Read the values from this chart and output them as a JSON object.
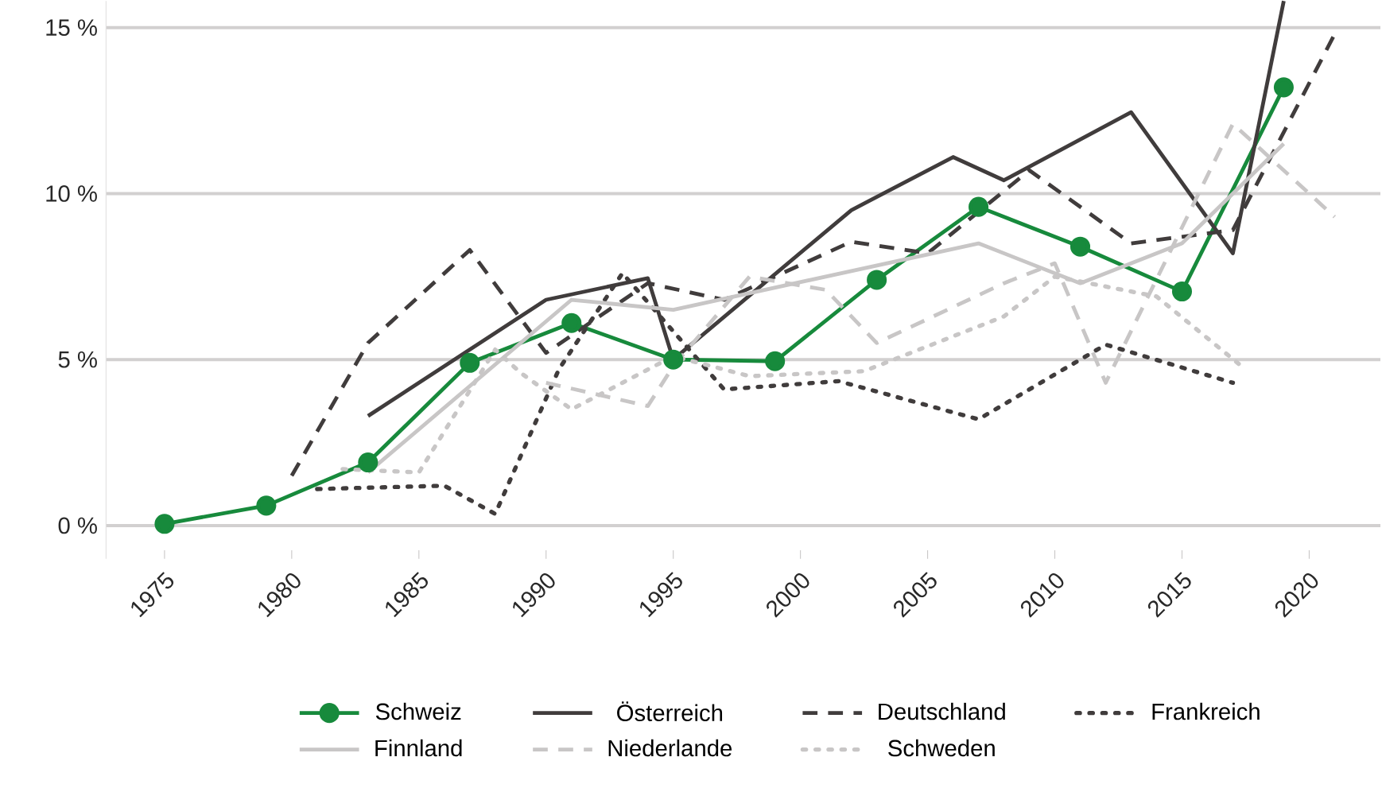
{
  "chart_data": {
    "type": "line",
    "xlim": [
      1972.7,
      2022.8
    ],
    "ylim": [
      -1,
      15.8
    ],
    "xticks": [
      1975,
      1980,
      1985,
      1990,
      1995,
      2000,
      2005,
      2010,
      2015,
      2020
    ],
    "yticks": [
      {
        "value": 0,
        "label": "0 %"
      },
      {
        "value": 5,
        "label": "5 %"
      },
      {
        "value": 10,
        "label": "10 %"
      },
      {
        "value": 15,
        "label": "15 %"
      }
    ],
    "grid": "y",
    "legend": "bottom",
    "series": [
      {
        "name": "Schweiz",
        "color": "#178a3c",
        "line_style": "solid",
        "marker": "circle",
        "x": [
          1975,
          1979,
          1983,
          1987,
          1991,
          1995,
          1999,
          2003,
          2007,
          2011,
          2015,
          2019
        ],
        "values": [
          0.05,
          0.6,
          1.9,
          4.9,
          6.1,
          5.0,
          4.95,
          7.4,
          9.6,
          8.4,
          7.05,
          13.2
        ]
      },
      {
        "name": "Österreich",
        "color": "#403c3c",
        "line_style": "solid",
        "marker": "none",
        "x": [
          1983,
          1990,
          1994,
          1995,
          2002,
          2006,
          2008,
          2013,
          2017,
          2019
        ],
        "values": [
          3.3,
          6.8,
          7.45,
          5.0,
          9.5,
          11.1,
          10.4,
          12.45,
          8.2,
          15.8
        ]
      },
      {
        "name": "Deutschland",
        "color": "#403c3c",
        "line_style": "dashed",
        "marker": "none",
        "x": [
          1980,
          1983,
          1987,
          1990,
          1994,
          1997,
          2002,
          2005,
          2009,
          2013,
          2017,
          2021
        ],
        "values": [
          1.5,
          5.5,
          8.3,
          5.2,
          7.3,
          6.8,
          8.55,
          8.2,
          10.7,
          8.5,
          8.9,
          14.8
        ]
      },
      {
        "name": "Frankreich",
        "color": "#403c3c",
        "line_style": "dotted",
        "marker": "none",
        "x": [
          1981,
          1986,
          1988,
          1990.5,
          1993,
          1997,
          2001.5,
          2007,
          2012,
          2017
        ],
        "values": [
          1.1,
          1.2,
          0.35,
          4.7,
          7.6,
          4.1,
          4.35,
          3.2,
          5.45,
          4.3
        ]
      },
      {
        "name": "Finnland",
        "color": "#c8c6c6",
        "line_style": "solid",
        "marker": "none",
        "x": [
          1983,
          1991,
          1995,
          2007,
          2011,
          2015,
          2019
        ],
        "values": [
          1.6,
          6.8,
          6.5,
          8.5,
          7.3,
          8.5,
          11.5
        ]
      },
      {
        "name": "Niederlande",
        "color": "#c8c6c6",
        "line_style": "dashed",
        "marker": "none",
        "x": [
          1990,
          1994,
          1995,
          1998,
          2001,
          2003,
          2008,
          2010,
          2012,
          2017,
          2021
        ],
        "values": [
          4.3,
          3.6,
          4.8,
          7.5,
          7.1,
          5.5,
          7.3,
          7.9,
          4.3,
          12.1,
          9.3
        ]
      },
      {
        "name": "Schweden",
        "color": "#c8c6c6",
        "line_style": "dotted",
        "marker": "none",
        "x": [
          1982,
          1985,
          1988,
          1989,
          1991,
          1995,
          1998,
          2002.5,
          2008,
          2010,
          2014,
          2017.5
        ],
        "values": [
          1.7,
          1.6,
          5.3,
          4.6,
          3.5,
          5.1,
          4.5,
          4.65,
          6.3,
          7.5,
          6.9,
          4.7
        ]
      }
    ]
  }
}
